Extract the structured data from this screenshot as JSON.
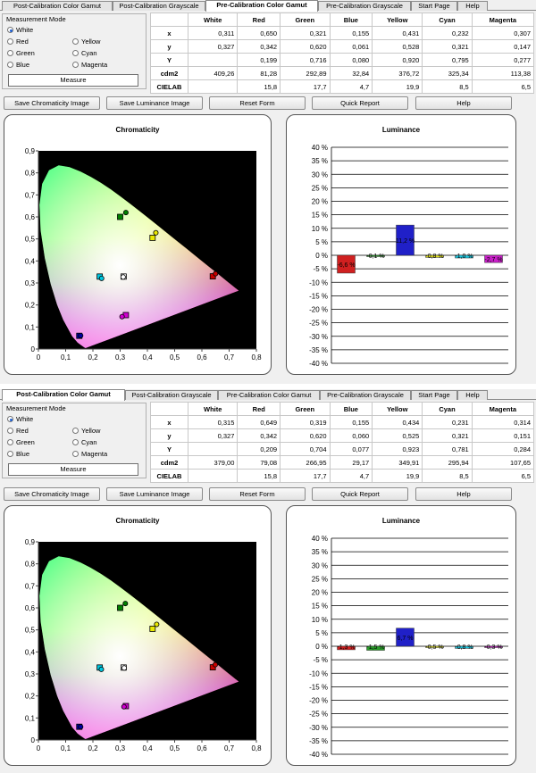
{
  "tabs": [
    "Post-Calibration Color Gamut",
    "Post-Calibration Grayscale",
    "Pre-Calibration Color Gamut",
    "Pre-Calibration Grayscale",
    "Start Page",
    "Help"
  ],
  "measurement_mode": {
    "title": "Measurement Mode",
    "options": [
      "White",
      "Red",
      "Green",
      "Blue",
      "Yellow",
      "Cyan",
      "Magenta"
    ],
    "selected": "White",
    "measure_label": "Measure"
  },
  "buttons": [
    "Save Chromaticity Image",
    "Save Luminance Image",
    "Reset Form",
    "Quick Report",
    "Help"
  ],
  "table_columns": [
    "",
    "White",
    "Red",
    "Green",
    "Blue",
    "Yellow",
    "Cyan",
    "Magenta"
  ],
  "table_row_labels": [
    "x",
    "y",
    "Y",
    "cdm2",
    "CIELAB"
  ],
  "panels": [
    {
      "active_tab": 2,
      "rows": [
        [
          "0,311",
          "0,650",
          "0,321",
          "0,155",
          "0,431",
          "0,232",
          "0,307"
        ],
        [
          "0,327",
          "0,342",
          "0,620",
          "0,061",
          "0,528",
          "0,321",
          "0,147"
        ],
        [
          "",
          "0,199",
          "0,716",
          "0,080",
          "0,920",
          "0,795",
          "0,277"
        ],
        [
          "409,26",
          "81,28",
          "292,89",
          "32,84",
          "376,72",
          "325,34",
          "113,38"
        ],
        [
          "",
          "15,8",
          "17,7",
          "4,7",
          "19,9",
          "8,5",
          "6,5"
        ]
      ],
      "chromaticity": {
        "title": "Chromaticity",
        "x_ticks": [
          "0",
          "0,1",
          "0,2",
          "0,3",
          "0,4",
          "0,5",
          "0,6",
          "0,7",
          "0,8"
        ],
        "y_ticks": [
          "0",
          "0,1",
          "0,2",
          "0,3",
          "0,4",
          "0,5",
          "0,6",
          "0,7",
          "0,8",
          "0,9"
        ],
        "targets": [
          [
            0.64,
            0.33
          ],
          [
            0.3,
            0.6
          ],
          [
            0.15,
            0.06
          ],
          [
            0.3127,
            0.329
          ],
          [
            0.419,
            0.505
          ],
          [
            0.225,
            0.329
          ],
          [
            0.321,
            0.154
          ]
        ],
        "measured": [
          [
            0.65,
            0.342
          ],
          [
            0.321,
            0.62
          ],
          [
            0.155,
            0.061
          ],
          [
            0.311,
            0.327
          ],
          [
            0.431,
            0.528
          ],
          [
            0.232,
            0.321
          ],
          [
            0.307,
            0.147
          ]
        ]
      },
      "luminance": {
        "title": "Luminance",
        "y_ticks": [
          "40 %",
          "35 %",
          "30 %",
          "25 %",
          "20 %",
          "15 %",
          "10 %",
          "5 %",
          "0 %",
          "-5 %",
          "-10 %",
          "-15 %",
          "-20 %",
          "-25 %",
          "-30 %",
          "-35 %",
          "-40 %"
        ],
        "bars": [
          {
            "value": -6.6,
            "label": "-6,6 %",
            "color": "#d02020"
          },
          {
            "value": -0.1,
            "label": "-0,1 %",
            "color": "#2a9d2a"
          },
          {
            "value": 11.2,
            "label": "11,2 %",
            "color": "#2020c8"
          },
          {
            "value": -0.8,
            "label": "-0,8 %",
            "color": "#e0e020"
          },
          {
            "value": -1.0,
            "label": "-1,0 %",
            "color": "#20c8e0"
          },
          {
            "value": -2.7,
            "label": "-2,7 %",
            "color": "#c820c8"
          }
        ]
      }
    },
    {
      "active_tab": 0,
      "rows": [
        [
          "0,315",
          "0,649",
          "0,319",
          "0,155",
          "0,434",
          "0,231",
          "0,314"
        ],
        [
          "0,327",
          "0,342",
          "0,620",
          "0,060",
          "0,525",
          "0,321",
          "0,151"
        ],
        [
          "",
          "0,209",
          "0,704",
          "0,077",
          "0,923",
          "0,781",
          "0,284"
        ],
        [
          "379,00",
          "79,08",
          "266,95",
          "29,17",
          "349,91",
          "295,94",
          "107,65"
        ],
        [
          "",
          "15,8",
          "17,7",
          "4,7",
          "19,9",
          "8,5",
          "6,5"
        ]
      ],
      "chromaticity": {
        "title": "Chromaticity",
        "x_ticks": [
          "0",
          "0,1",
          "0,2",
          "0,3",
          "0,4",
          "0,5",
          "0,6",
          "0,7",
          "0,8"
        ],
        "y_ticks": [
          "0",
          "0,1",
          "0,2",
          "0,3",
          "0,4",
          "0,5",
          "0,6",
          "0,7",
          "0,8",
          "0,9"
        ],
        "targets": [
          [
            0.64,
            0.33
          ],
          [
            0.3,
            0.6
          ],
          [
            0.15,
            0.06
          ],
          [
            0.3127,
            0.329
          ],
          [
            0.419,
            0.505
          ],
          [
            0.225,
            0.329
          ],
          [
            0.321,
            0.154
          ]
        ],
        "measured": [
          [
            0.649,
            0.342
          ],
          [
            0.319,
            0.62
          ],
          [
            0.155,
            0.06
          ],
          [
            0.315,
            0.327
          ],
          [
            0.434,
            0.525
          ],
          [
            0.231,
            0.321
          ],
          [
            0.314,
            0.151
          ]
        ]
      },
      "luminance": {
        "title": "Luminance",
        "y_ticks": [
          "40 %",
          "35 %",
          "30 %",
          "25 %",
          "20 %",
          "15 %",
          "10 %",
          "5 %",
          "0 %",
          "-5 %",
          "-10 %",
          "-15 %",
          "-20 %",
          "-25 %",
          "-30 %",
          "-35 %",
          "-40 %"
        ],
        "bars": [
          {
            "value": -1.3,
            "label": "-1,3 %",
            "color": "#d02020"
          },
          {
            "value": -1.5,
            "label": "-1,5 %",
            "color": "#2a9d2a"
          },
          {
            "value": 6.7,
            "label": "6,7 %",
            "color": "#2020c8"
          },
          {
            "value": -0.5,
            "label": "-0,5 %",
            "color": "#e0e020"
          },
          {
            "value": -0.8,
            "label": "-0,8 %",
            "color": "#20c8e0"
          },
          {
            "value": -0.3,
            "label": "-0,3 %",
            "color": "#c820c8"
          }
        ]
      }
    }
  ]
}
